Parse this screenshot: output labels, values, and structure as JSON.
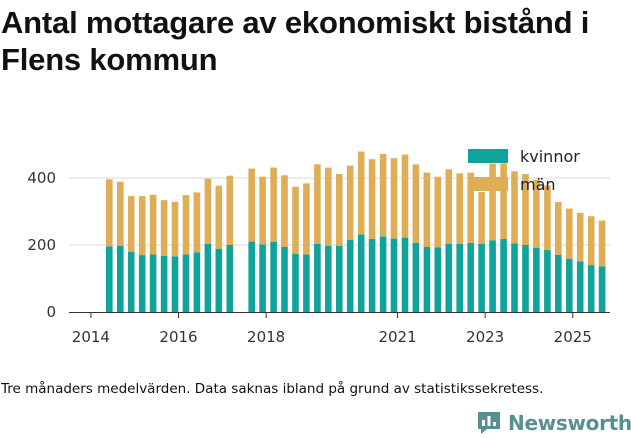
{
  "title": "Antal mottagare av ekonomiskt bistånd i Flens kommun",
  "note": "Tre månaders medelvärden. Data saknas ibland på grund av statistikssekretess.",
  "brand": "Newsworthy",
  "colors": {
    "kvinnor": "#0fa39b",
    "man": "#e0ad57",
    "grid": "#d9d9d9",
    "axis": "#333333"
  },
  "chart_data": {
    "type": "bar",
    "stacked": true,
    "title": "Antal mottagare av ekonomiskt bistånd i Flens kommun",
    "xlabel": "",
    "ylabel": "",
    "ylim": [
      0,
      470
    ],
    "xlim": [
      2013.5,
      2025.85
    ],
    "y_ticks": [
      0,
      200,
      400
    ],
    "x_ticks": [
      2014,
      2016,
      2018,
      2021,
      2023,
      2025
    ],
    "legend_position": "top-right",
    "x": [
      2014.42,
      2014.67,
      2014.92,
      2015.17,
      2015.42,
      2015.67,
      2015.92,
      2016.17,
      2016.42,
      2016.67,
      2016.92,
      2017.17,
      2017.67,
      2017.92,
      2018.17,
      2018.42,
      2018.67,
      2018.92,
      2019.17,
      2019.42,
      2019.67,
      2019.92,
      2020.17,
      2020.42,
      2020.67,
      2020.92,
      2021.17,
      2021.42,
      2021.67,
      2021.92,
      2022.17,
      2022.42,
      2022.67,
      2022.92,
      2023.17,
      2023.42,
      2023.67,
      2023.92,
      2024.17,
      2024.42,
      2024.67,
      2024.92,
      2025.17,
      2025.42,
      2025.67
    ],
    "series": [
      {
        "name": "kvinnor",
        "values": [
          196,
          198,
          179,
          170,
          172,
          168,
          166,
          172,
          178,
          204,
          189,
          200,
          210,
          202,
          209,
          194,
          174,
          172,
          203,
          198,
          198,
          215,
          231,
          218,
          226,
          219,
          222,
          206,
          194,
          193,
          204,
          204,
          206,
          203,
          214,
          218,
          205,
          200,
          192,
          185,
          171,
          159,
          151,
          140,
          136
        ]
      },
      {
        "name": "män",
        "values": [
          200,
          191,
          167,
          176,
          178,
          166,
          163,
          177,
          179,
          194,
          188,
          207,
          218,
          202,
          222,
          214,
          200,
          212,
          238,
          233,
          214,
          222,
          248,
          238,
          246,
          240,
          248,
          235,
          222,
          211,
          222,
          210,
          210,
          155,
          229,
          226,
          215,
          212,
          203,
          193,
          157,
          150,
          145,
          146,
          137
        ]
      }
    ]
  }
}
